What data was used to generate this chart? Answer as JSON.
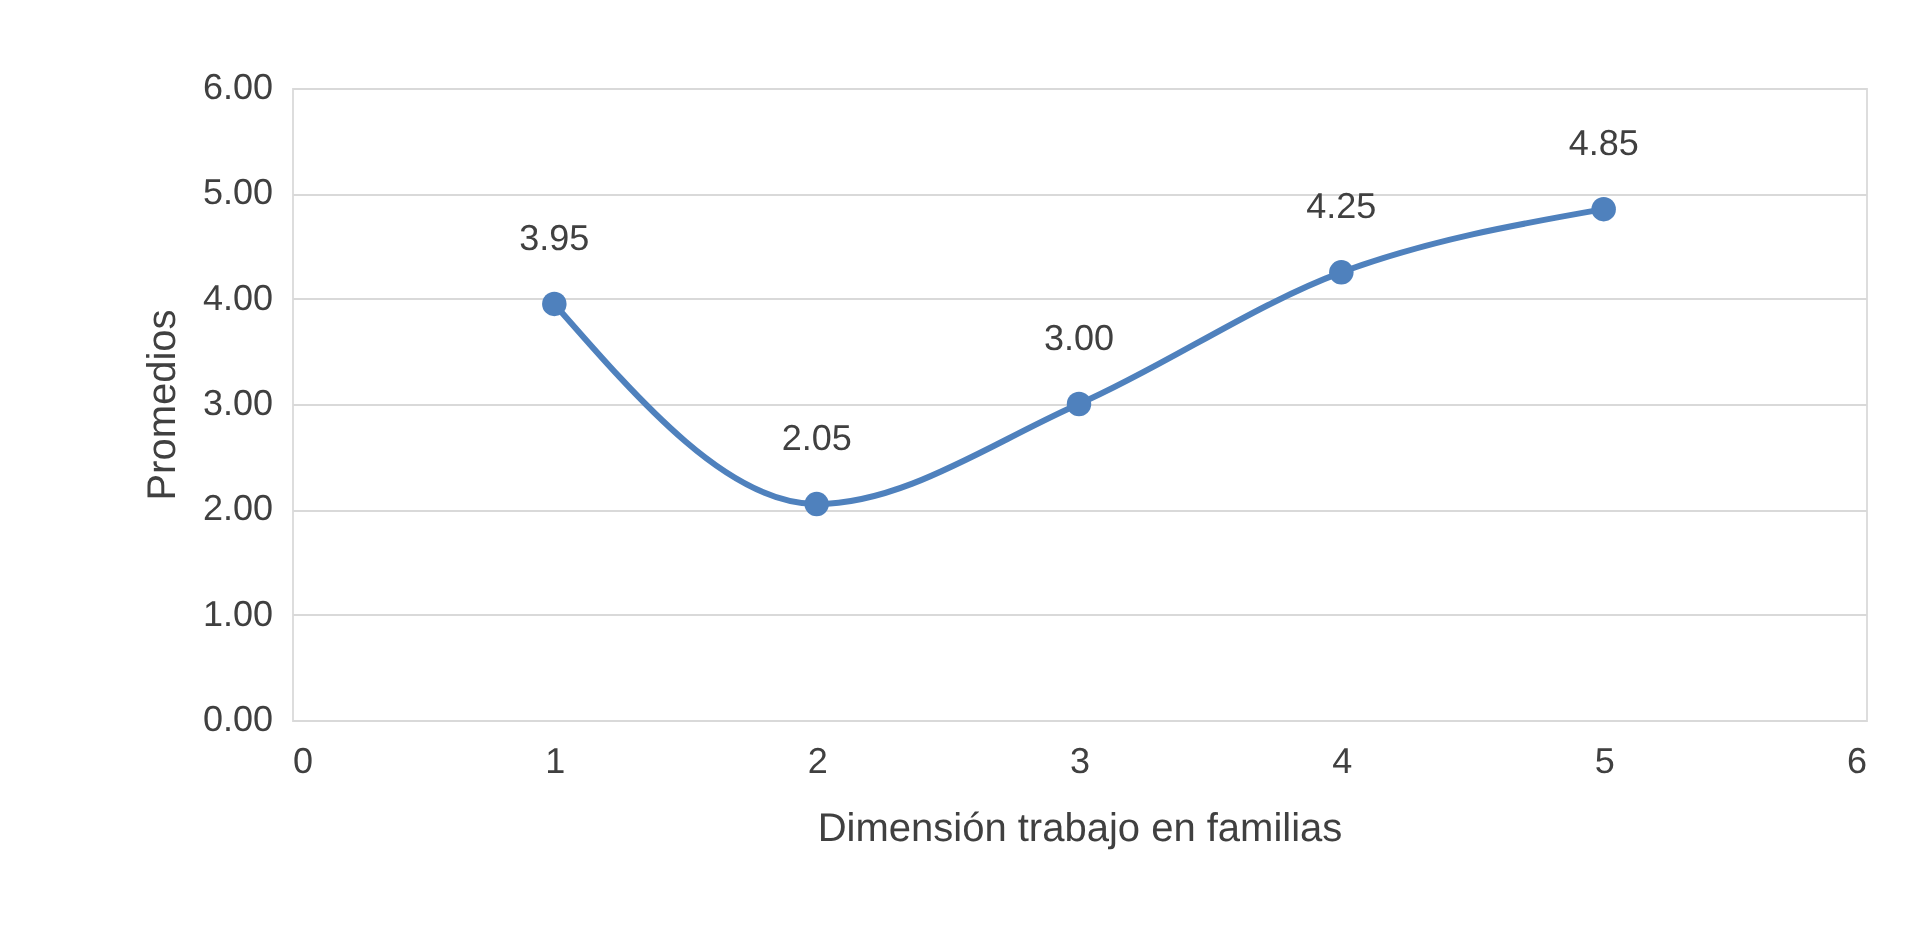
{
  "chart_data": {
    "type": "line",
    "xlabel": "Dimensión trabajo en familias",
    "ylabel": "Promedios",
    "x": [
      1,
      2,
      3,
      4,
      5
    ],
    "series": [
      {
        "color": "#4f81bd",
        "values": [
          3.95,
          2.05,
          3.0,
          4.25,
          4.85
        ],
        "value_labels": [
          "3.95",
          "2.05",
          "3.00",
          "4.25",
          "4.85"
        ]
      }
    ],
    "xlim": [
      0,
      6
    ],
    "xticks": [
      0,
      1,
      2,
      3,
      4,
      5,
      6
    ],
    "ylim": [
      0,
      6
    ],
    "yticks": [
      {
        "value": 0,
        "label": "0.00"
      },
      {
        "value": 1,
        "label": "1.00"
      },
      {
        "value": 2,
        "label": "2.00"
      },
      {
        "value": 3,
        "label": "3.00"
      },
      {
        "value": 4,
        "label": "4.00"
      },
      {
        "value": 5,
        "label": "5.00"
      },
      {
        "value": 6,
        "label": "6.00"
      }
    ],
    "grid": "y",
    "marker": "circle",
    "line_style": "solid"
  }
}
